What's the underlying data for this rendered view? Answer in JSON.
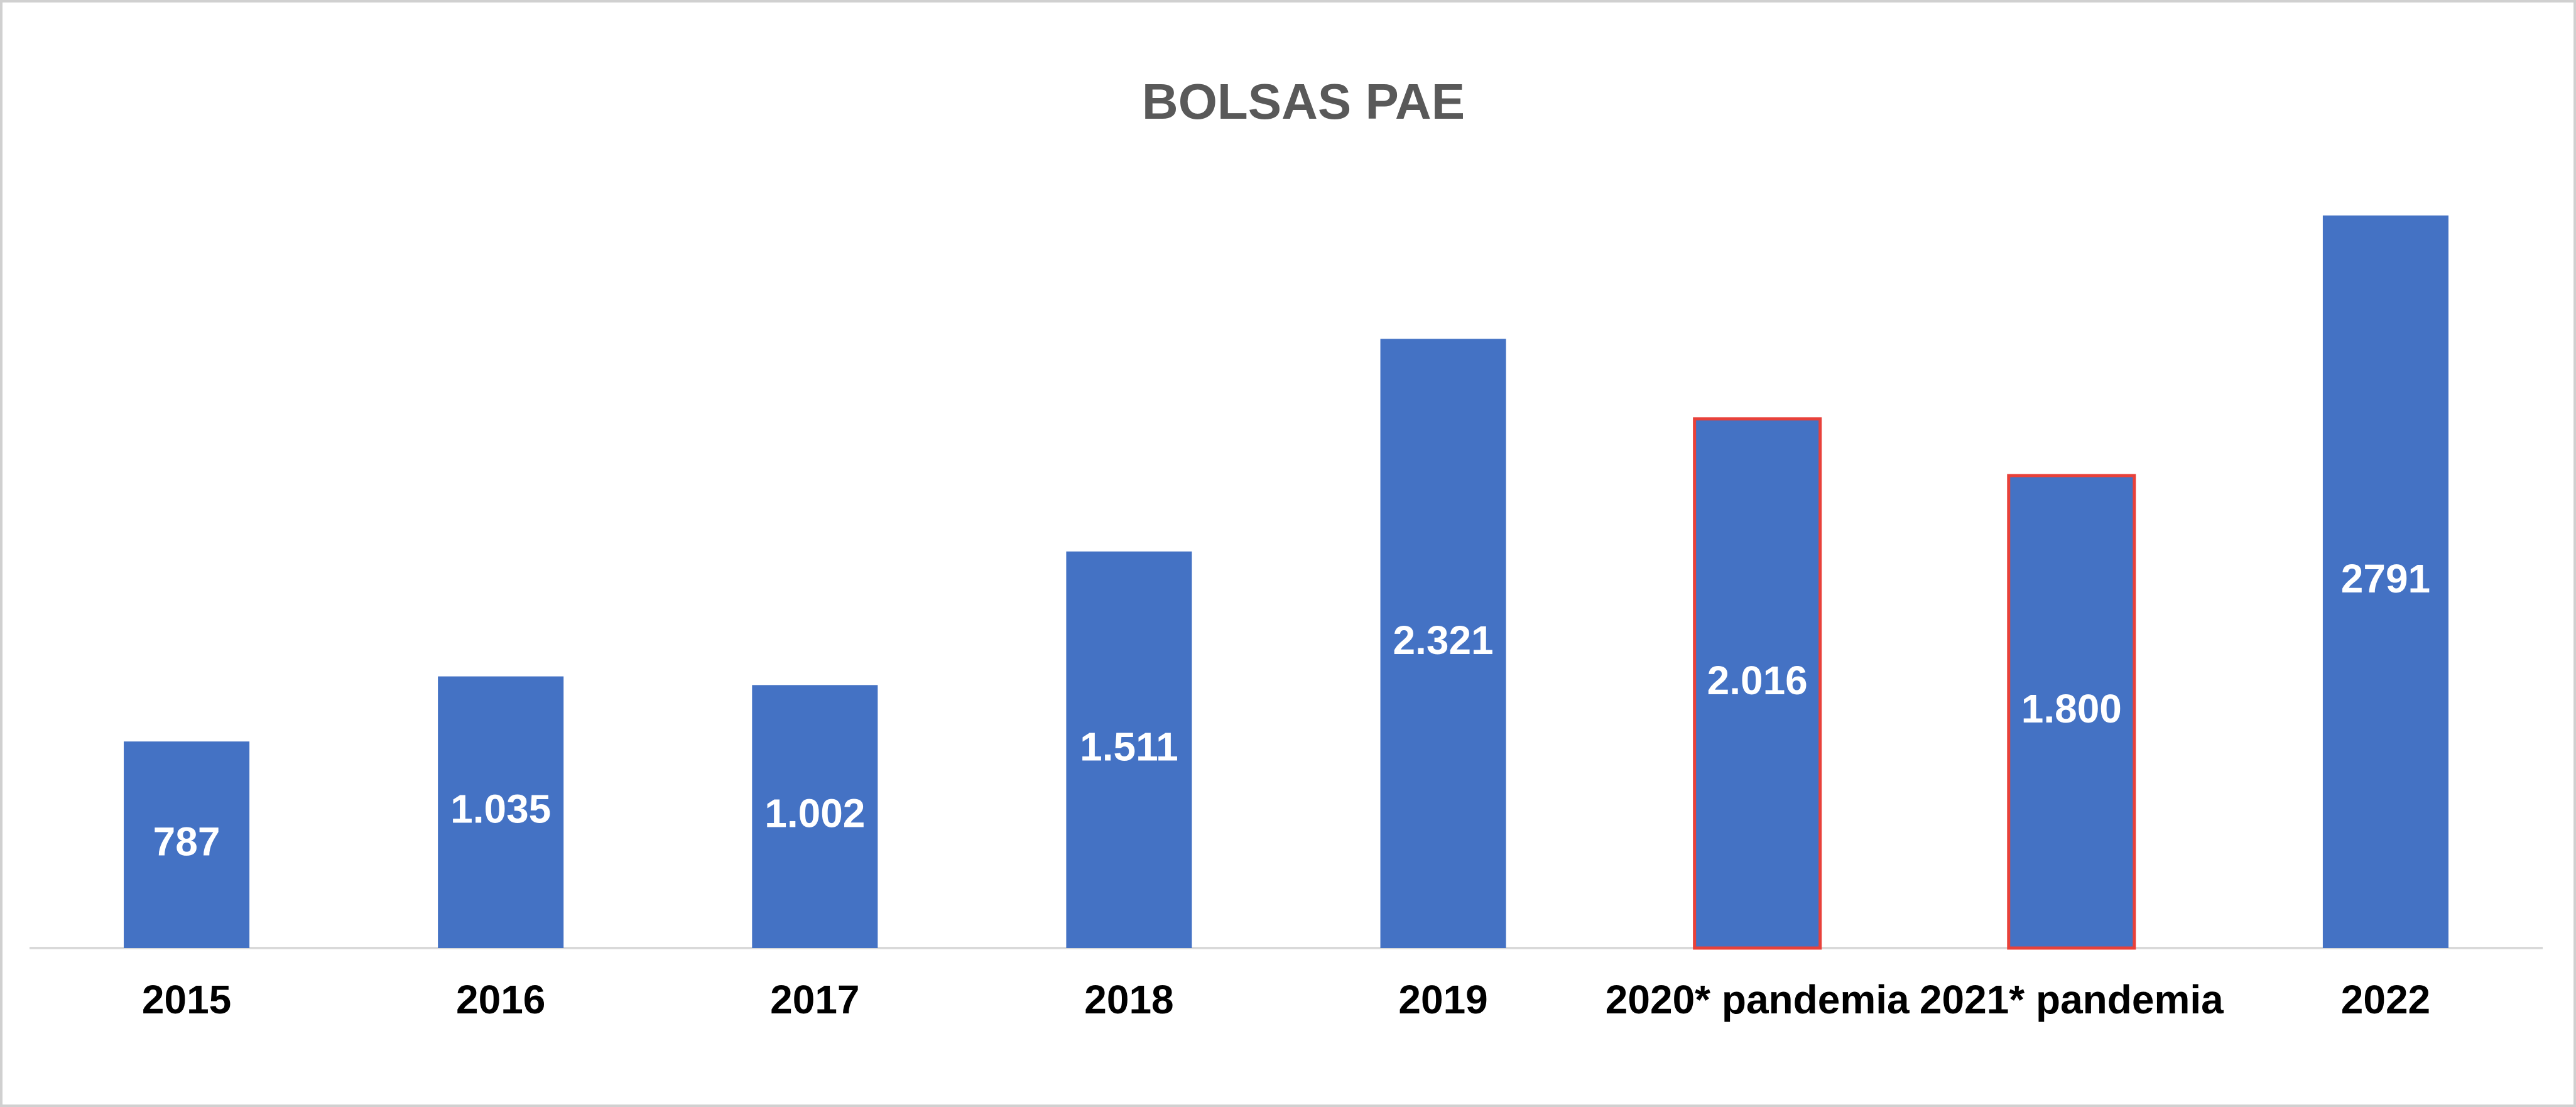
{
  "chart_data": {
    "type": "bar",
    "title": "BOLSAS PAE",
    "categories": [
      "2015",
      "2016",
      "2017",
      "2018",
      "2019",
      "2020* pandemia",
      "2021* pandemia",
      "2022"
    ],
    "values": [
      787,
      1035,
      1002,
      1511,
      2321,
      2016,
      1800,
      2791
    ],
    "value_labels": [
      "787",
      "1.035",
      "1.002",
      "1.511",
      "2.321",
      "2.016",
      "1.800",
      "2791"
    ],
    "color": "#4472c4",
    "edgecolors": [
      null,
      null,
      null,
      null,
      null,
      "#e8413a",
      "#e8413a",
      null
    ]
  }
}
